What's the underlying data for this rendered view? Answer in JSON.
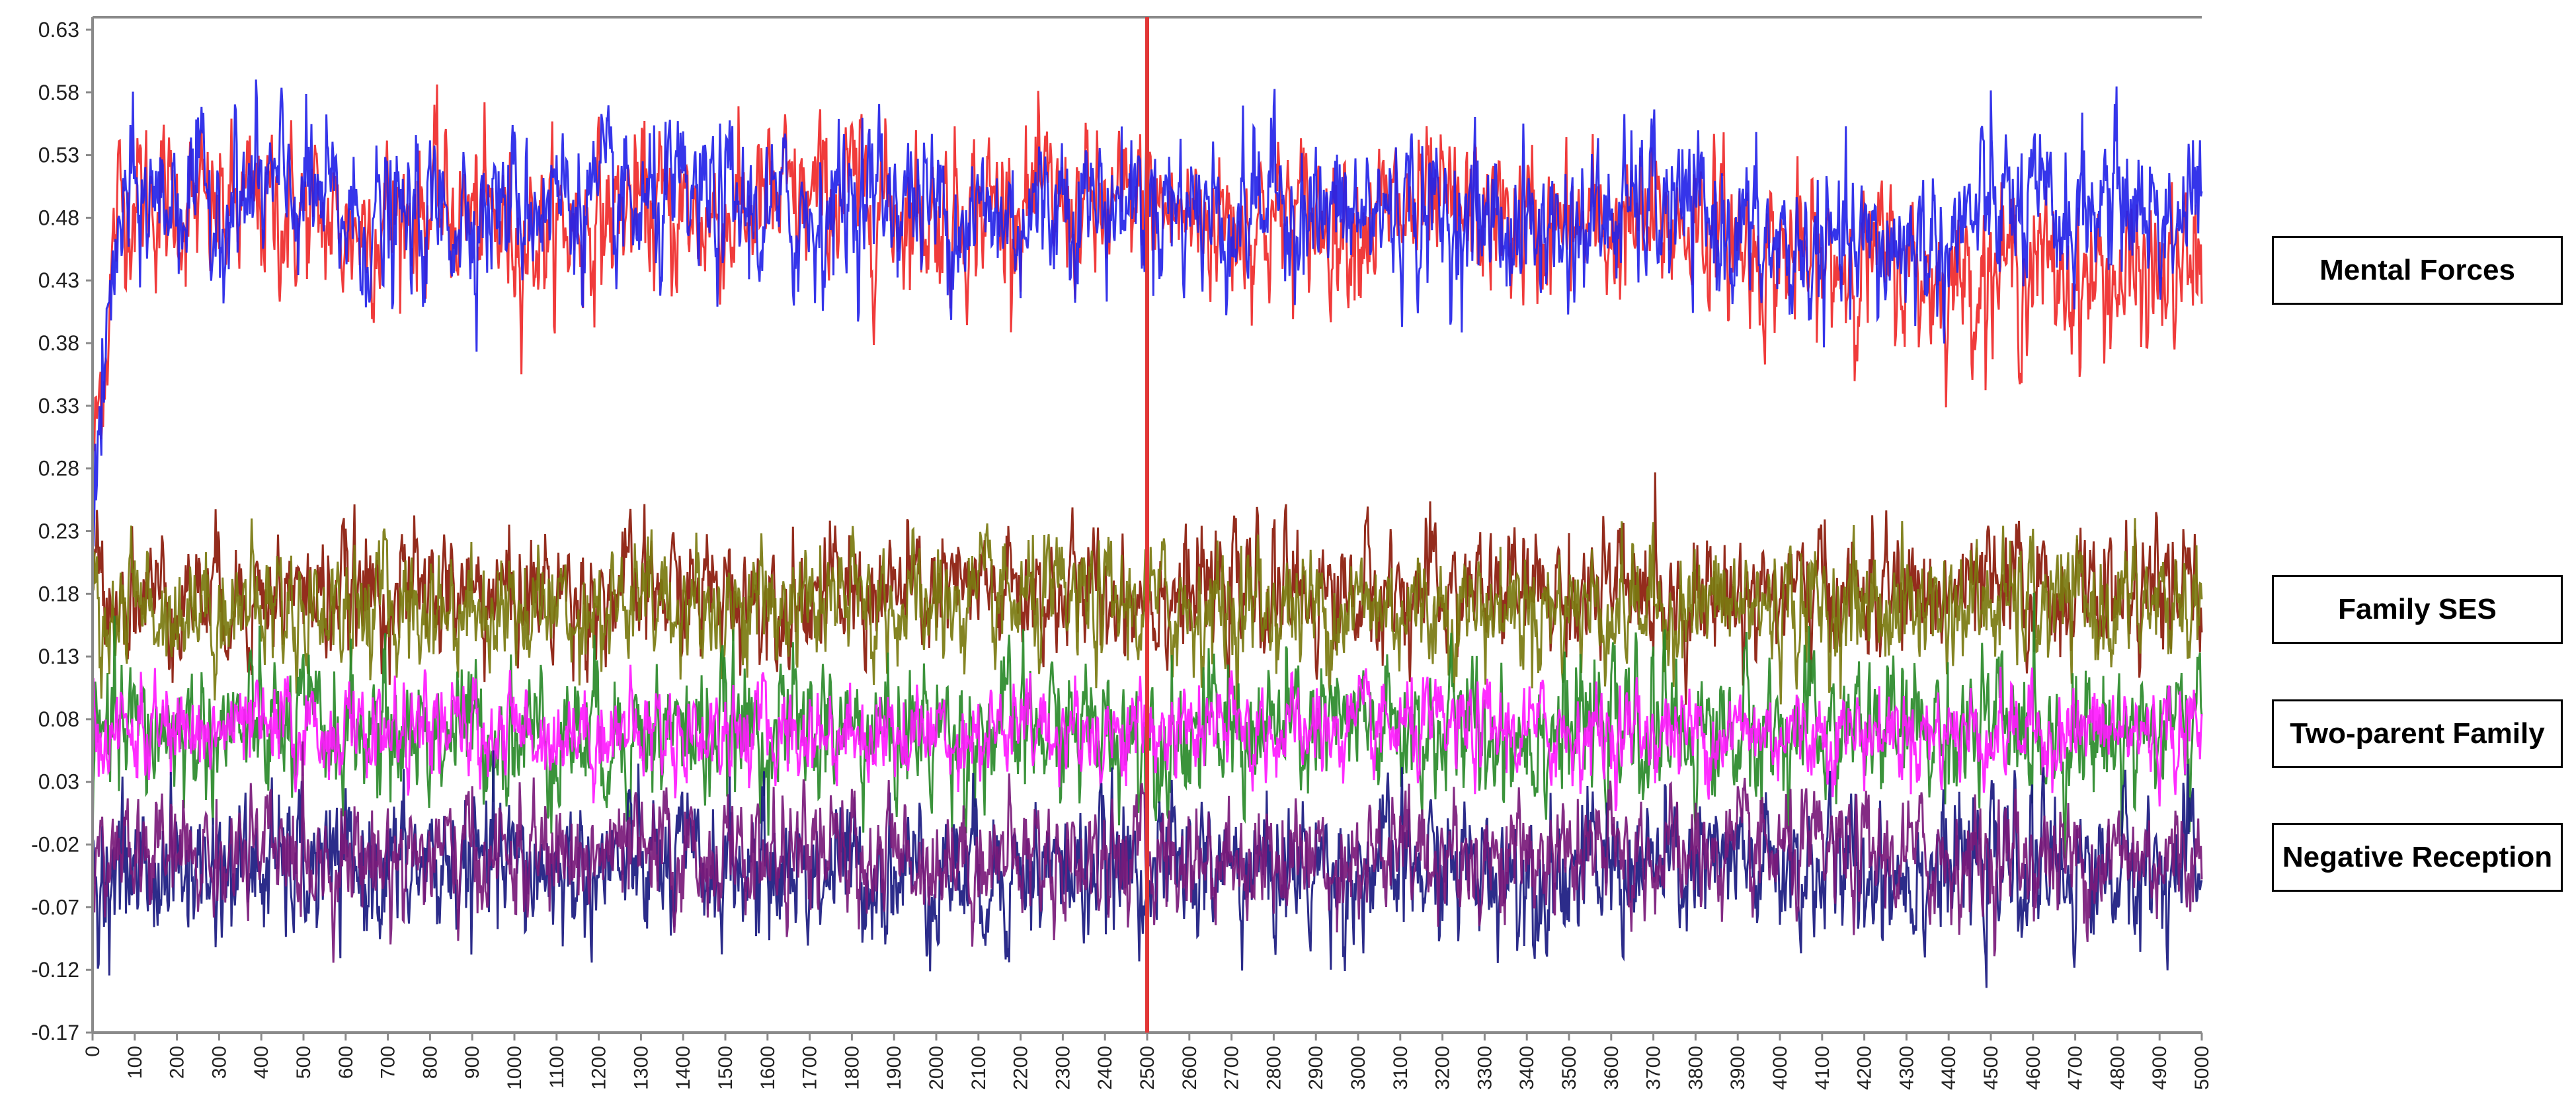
{
  "legend": {
    "mental_forces": "Mental Forces",
    "family_ses": "Family SES",
    "two_parent_family": "Two-parent Family",
    "negative_reception": "Negative Reception"
  },
  "chart_data": {
    "type": "line",
    "title": "",
    "xlabel": "",
    "ylabel": "",
    "xlim": [
      0,
      5000
    ],
    "ylim": [
      -0.17,
      0.64
    ],
    "y_ticks": [
      "0.63",
      "0.58",
      "0.53",
      "0.48",
      "0.43",
      "0.38",
      "0.33",
      "0.28",
      "0.23",
      "0.18",
      "0.13",
      "0.08",
      "0.03",
      "-0.02",
      "-0.07",
      "-0.12",
      "-0.17"
    ],
    "x_ticks": [
      "0",
      "100",
      "200",
      "300",
      "400",
      "500",
      "600",
      "700",
      "800",
      "900",
      "1000",
      "1100",
      "1200",
      "1300",
      "1400",
      "1500",
      "1600",
      "1700",
      "1800",
      "1900",
      "2000",
      "2100",
      "2200",
      "2300",
      "2400",
      "2500",
      "2600",
      "2700",
      "2800",
      "2900",
      "3000",
      "3100",
      "3200",
      "3300",
      "3400",
      "3500",
      "3600",
      "3700",
      "3800",
      "3900",
      "4000",
      "4100",
      "4200",
      "4300",
      "4400",
      "4500",
      "4600",
      "4700",
      "4800",
      "4900",
      "5000"
    ],
    "vertical_marker": {
      "x": 2500,
      "color": "#e23636"
    },
    "grid": false,
    "series": [
      {
        "group": "mental_forces",
        "color": "#ef2a2a",
        "mean": 0.478,
        "noise": 0.026,
        "start": 0.28,
        "values": [
          0.47,
          0.5,
          0.49,
          0.48,
          0.49,
          0.48,
          0.47,
          0.48,
          0.49,
          0.48,
          0.47,
          0.47,
          0.48,
          0.49,
          0.48,
          0.48,
          0.49,
          0.49,
          0.5,
          0.49,
          0.48,
          0.49,
          0.49,
          0.49,
          0.48,
          0.49,
          0.48,
          0.48,
          0.48,
          0.48,
          0.48,
          0.48,
          0.48,
          0.48,
          0.47,
          0.47,
          0.47,
          0.47,
          0.48,
          0.46,
          0.45,
          0.44,
          0.45,
          0.44,
          0.43,
          0.44,
          0.44,
          0.43,
          0.43,
          0.43,
          0.44
        ]
      },
      {
        "group": "mental_forces",
        "color": "#2424e8",
        "mean": 0.485,
        "noise": 0.026,
        "start": 0.26,
        "values": [
          0.44,
          0.49,
          0.5,
          0.49,
          0.5,
          0.5,
          0.48,
          0.47,
          0.48,
          0.49,
          0.49,
          0.5,
          0.49,
          0.48,
          0.49,
          0.49,
          0.48,
          0.48,
          0.5,
          0.5,
          0.49,
          0.48,
          0.48,
          0.5,
          0.49,
          0.5,
          0.49,
          0.48,
          0.5,
          0.48,
          0.48,
          0.49,
          0.48,
          0.48,
          0.47,
          0.47,
          0.48,
          0.49,
          0.48,
          0.47,
          0.45,
          0.45,
          0.45,
          0.46,
          0.46,
          0.49,
          0.48,
          0.48,
          0.5,
          0.48,
          0.49
        ]
      },
      {
        "group": "family_ses",
        "color": "#8b1a0a",
        "mean": 0.175,
        "noise": 0.021,
        "start": 0.2,
        "values": [
          0.18,
          0.18,
          0.18,
          0.18,
          0.18,
          0.18,
          0.18,
          0.18,
          0.18,
          0.18,
          0.18,
          0.18,
          0.18,
          0.18,
          0.18,
          0.18,
          0.18,
          0.18,
          0.18,
          0.18,
          0.18,
          0.18,
          0.18,
          0.18,
          0.18,
          0.18,
          0.18,
          0.18,
          0.18,
          0.18,
          0.18,
          0.18,
          0.18,
          0.18,
          0.18,
          0.18,
          0.18,
          0.18,
          0.18,
          0.18,
          0.18,
          0.18,
          0.18,
          0.18,
          0.18,
          0.18,
          0.18,
          0.18,
          0.18,
          0.18,
          0.18
        ]
      },
      {
        "group": "family_ses",
        "color": "#7a7a10",
        "mean": 0.168,
        "noise": 0.021,
        "start": 0.15,
        "values": [
          0.17,
          0.17,
          0.17,
          0.17,
          0.17,
          0.17,
          0.17,
          0.17,
          0.17,
          0.17,
          0.17,
          0.17,
          0.17,
          0.17,
          0.17,
          0.17,
          0.17,
          0.17,
          0.17,
          0.17,
          0.17,
          0.17,
          0.17,
          0.17,
          0.17,
          0.17,
          0.17,
          0.17,
          0.17,
          0.17,
          0.17,
          0.17,
          0.17,
          0.17,
          0.17,
          0.17,
          0.17,
          0.17,
          0.17,
          0.17,
          0.17,
          0.17,
          0.17,
          0.17,
          0.17,
          0.17,
          0.17,
          0.17,
          0.17,
          0.17,
          0.17
        ]
      },
      {
        "group": "two_parent_family",
        "color": "#2a8a2a",
        "mean": 0.072,
        "noise": 0.024,
        "start": 0.05,
        "values": [
          0.07,
          0.07,
          0.07,
          0.07,
          0.07,
          0.07,
          0.07,
          0.07,
          0.07,
          0.07,
          0.07,
          0.07,
          0.07,
          0.07,
          0.07,
          0.07,
          0.07,
          0.07,
          0.07,
          0.07,
          0.07,
          0.07,
          0.07,
          0.07,
          0.07,
          0.07,
          0.07,
          0.07,
          0.07,
          0.07,
          0.07,
          0.07,
          0.07,
          0.07,
          0.07,
          0.07,
          0.07,
          0.07,
          0.07,
          0.07,
          0.07,
          0.07,
          0.07,
          0.07,
          0.07,
          0.07,
          0.07,
          0.07,
          0.07,
          0.07,
          0.07
        ]
      },
      {
        "group": "two_parent_family",
        "color": "#ff1aff",
        "mean": 0.072,
        "noise": 0.016,
        "start": 0.07,
        "values": [
          0.07,
          0.07,
          0.07,
          0.07,
          0.07,
          0.07,
          0.07,
          0.07,
          0.07,
          0.07,
          0.07,
          0.07,
          0.07,
          0.07,
          0.07,
          0.07,
          0.07,
          0.07,
          0.07,
          0.07,
          0.07,
          0.07,
          0.07,
          0.07,
          0.07,
          0.07,
          0.07,
          0.07,
          0.07,
          0.07,
          0.07,
          0.07,
          0.07,
          0.07,
          0.07,
          0.07,
          0.07,
          0.07,
          0.07,
          0.07,
          0.07,
          0.07,
          0.07,
          0.07,
          0.07,
          0.07,
          0.07,
          0.07,
          0.07,
          0.07,
          0.07
        ]
      },
      {
        "group": "negative_reception",
        "color": "#1a1a80",
        "mean": -0.045,
        "noise": 0.024,
        "start": -0.04,
        "values": [
          -0.04,
          -0.04,
          -0.04,
          -0.04,
          -0.04,
          -0.04,
          -0.04,
          -0.04,
          -0.04,
          -0.04,
          -0.04,
          -0.04,
          -0.04,
          -0.04,
          -0.04,
          -0.04,
          -0.04,
          -0.04,
          -0.04,
          -0.04,
          -0.04,
          -0.04,
          -0.04,
          -0.04,
          -0.04,
          -0.04,
          -0.04,
          -0.04,
          -0.04,
          -0.04,
          -0.04,
          -0.04,
          -0.04,
          -0.04,
          -0.04,
          -0.04,
          -0.04,
          -0.04,
          -0.04,
          -0.04,
          -0.04,
          -0.04,
          -0.04,
          -0.04,
          -0.04,
          -0.04,
          -0.04,
          -0.04,
          -0.04,
          -0.04,
          -0.04
        ]
      },
      {
        "group": "negative_reception",
        "color": "#7a1a7a",
        "mean": -0.035,
        "noise": 0.02,
        "start": -0.03,
        "values": [
          -0.03,
          -0.03,
          -0.03,
          -0.03,
          -0.03,
          -0.03,
          -0.03,
          -0.03,
          -0.03,
          -0.03,
          -0.03,
          -0.03,
          -0.03,
          -0.03,
          -0.03,
          -0.03,
          -0.03,
          -0.03,
          -0.03,
          -0.03,
          -0.03,
          -0.03,
          -0.03,
          -0.03,
          -0.03,
          -0.03,
          -0.03,
          -0.03,
          -0.03,
          -0.03,
          -0.03,
          -0.03,
          -0.03,
          -0.03,
          -0.03,
          -0.03,
          -0.03,
          -0.03,
          -0.03,
          -0.03,
          -0.03,
          -0.03,
          -0.03,
          -0.03,
          -0.03,
          -0.03,
          -0.03,
          -0.03,
          -0.03,
          -0.03,
          -0.03
        ]
      }
    ]
  }
}
